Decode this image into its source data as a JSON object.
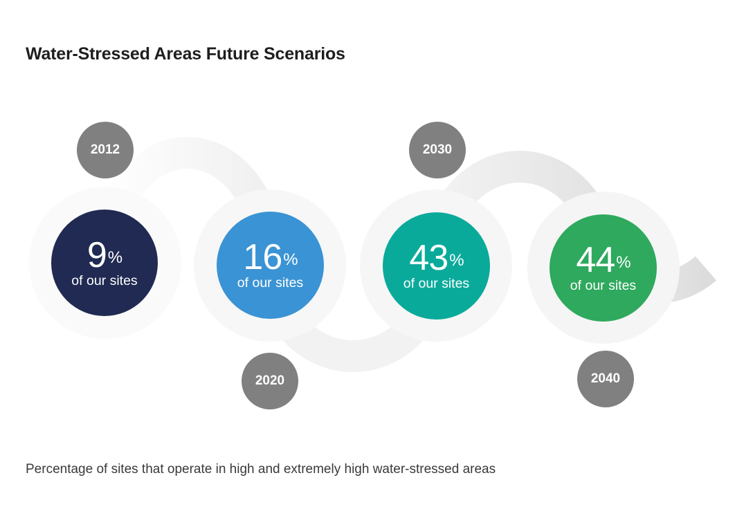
{
  "title": "Water-Stressed Areas Future Scenarios",
  "caption": "Percentage of sites that operate in high and extremely high water-stressed areas",
  "scenarios": [
    {
      "year": "2012",
      "value": "9",
      "unit": "%",
      "label": "of our sites",
      "color": "#202a52"
    },
    {
      "year": "2020",
      "value": "16",
      "unit": "%",
      "label": "of our sites",
      "color": "#3a93d4"
    },
    {
      "year": "2030",
      "value": "43",
      "unit": "%",
      "label": "of our sites",
      "color": "#0aaa9b"
    },
    {
      "year": "2040",
      "value": "44",
      "unit": "%",
      "label": "of our sites",
      "color": "#2ea95d"
    }
  ],
  "year_badge_color": "#808080",
  "ribbon_color": "#e3e3e3"
}
